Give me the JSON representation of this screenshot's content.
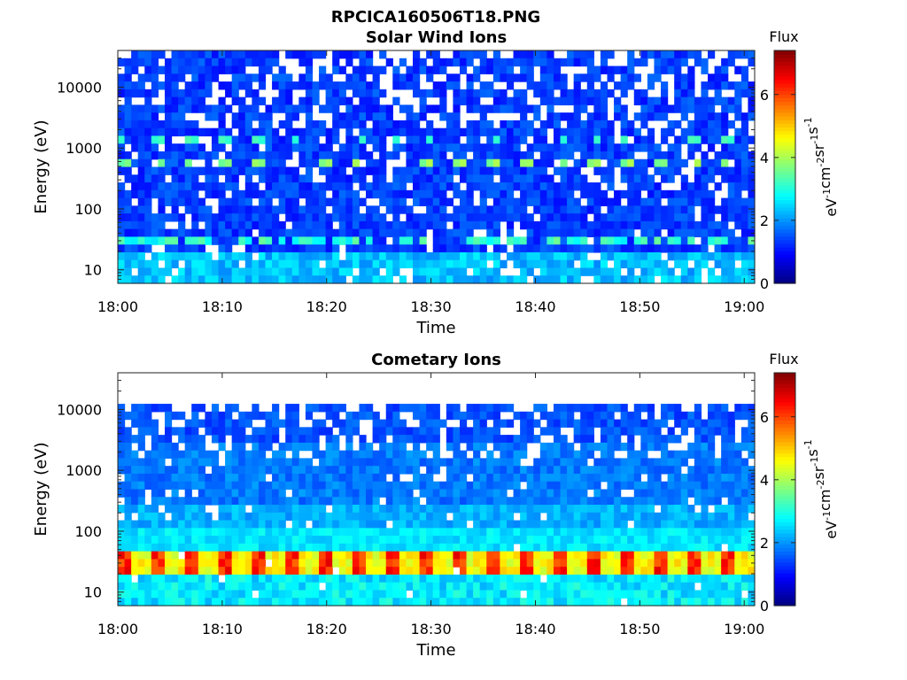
{
  "figure": {
    "title": "RPCICA160506T18.PNG"
  },
  "colorbar": {
    "label": "Flux",
    "unit_parts": [
      "eV",
      "-1",
      "cm",
      "-2",
      "sr",
      "-1",
      "s",
      "-1"
    ],
    "range": [
      0,
      7.4
    ],
    "ticks": [
      "0",
      "2",
      "4",
      "6"
    ]
  },
  "chart_data": [
    {
      "type": "heatmap",
      "title": "Solar Wind Ions",
      "xlabel": "Time",
      "ylabel": "Energy (eV)",
      "x_ticks": [
        "18:00",
        "18:10",
        "18:20",
        "18:30",
        "18:40",
        "18:50",
        "19:00"
      ],
      "x_range": [
        "18:00",
        "19:01"
      ],
      "y_scale": "log",
      "y_ticks": [
        "10",
        "100",
        "1000",
        "10000"
      ],
      "y_range": [
        6,
        40000
      ],
      "color_scale": "jet",
      "z_range": [
        0,
        7.4
      ],
      "pattern": {
        "background_flux": 1.0,
        "periodic_peak_energy_eV": 600,
        "periodic_peak_flux": 3.8,
        "periodic_secondary_energy_eV": 1300,
        "periodic_secondary_flux": 3.0,
        "low_energy_band_eV": [
          25,
          40
        ],
        "low_energy_band_flux": 3.4,
        "cycle_period_min": 3.2
      }
    },
    {
      "type": "heatmap",
      "title": "Cometary Ions",
      "xlabel": "Time",
      "ylabel": "Energy (eV)",
      "x_ticks": [
        "18:00",
        "18:10",
        "18:20",
        "18:30",
        "18:40",
        "18:50",
        "19:00"
      ],
      "x_range": [
        "18:00",
        "19:01"
      ],
      "y_scale": "log",
      "y_ticks": [
        "10",
        "100",
        "1000",
        "10000"
      ],
      "y_range": [
        6,
        40000
      ],
      "color_scale": "jet",
      "z_range": [
        0,
        7.4
      ],
      "pattern": {
        "data_upper_energy_eV": 11000,
        "background_flux": 1.2,
        "peak_band_eV": [
          22,
          45
        ],
        "peak_band_flux": 6.3,
        "below_peak_flux": 2.6,
        "cycle_period_min": 3.2
      }
    }
  ]
}
